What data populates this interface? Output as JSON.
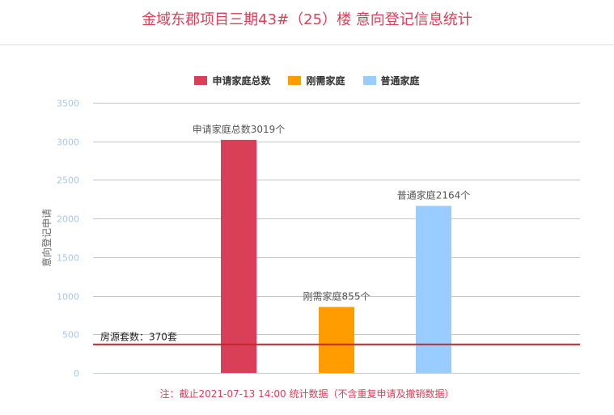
{
  "title": "金域东郡项目三期43#（25）楼 意向登记信息统计",
  "note": "注：截止2021-07-13 14:00 统计数据（不含重复申请及撤销数据）",
  "legend": [
    {
      "label": "申请家庭总数",
      "color": "#d93f57"
    },
    {
      "label": "刚需家庭",
      "color": "#ff9c00"
    },
    {
      "label": "普通家庭",
      "color": "#99ccff"
    }
  ],
  "chart_data": {
    "type": "bar",
    "title": "金域东郡项目三期43#（25）楼 意向登记信息统计",
    "xlabel": "",
    "ylabel": "意向登记申请",
    "ylim": [
      0,
      3500
    ],
    "yticks": [
      0,
      500,
      1000,
      1500,
      2000,
      2500,
      3000,
      3500
    ],
    "grid": true,
    "legend_position": "top",
    "categories": [
      "申请家庭总数",
      "刚需家庭",
      "普通家庭"
    ],
    "values": [
      3019,
      855,
      2164
    ],
    "colors": [
      "#d93f57",
      "#ff9c00",
      "#99ccff"
    ],
    "data_labels": [
      "申请家庭总数3019个",
      "刚需家庭855个",
      "普通家庭2164个"
    ],
    "reference_line": {
      "value": 370,
      "label": "房源套数：370套",
      "color": "#c0282d"
    }
  }
}
